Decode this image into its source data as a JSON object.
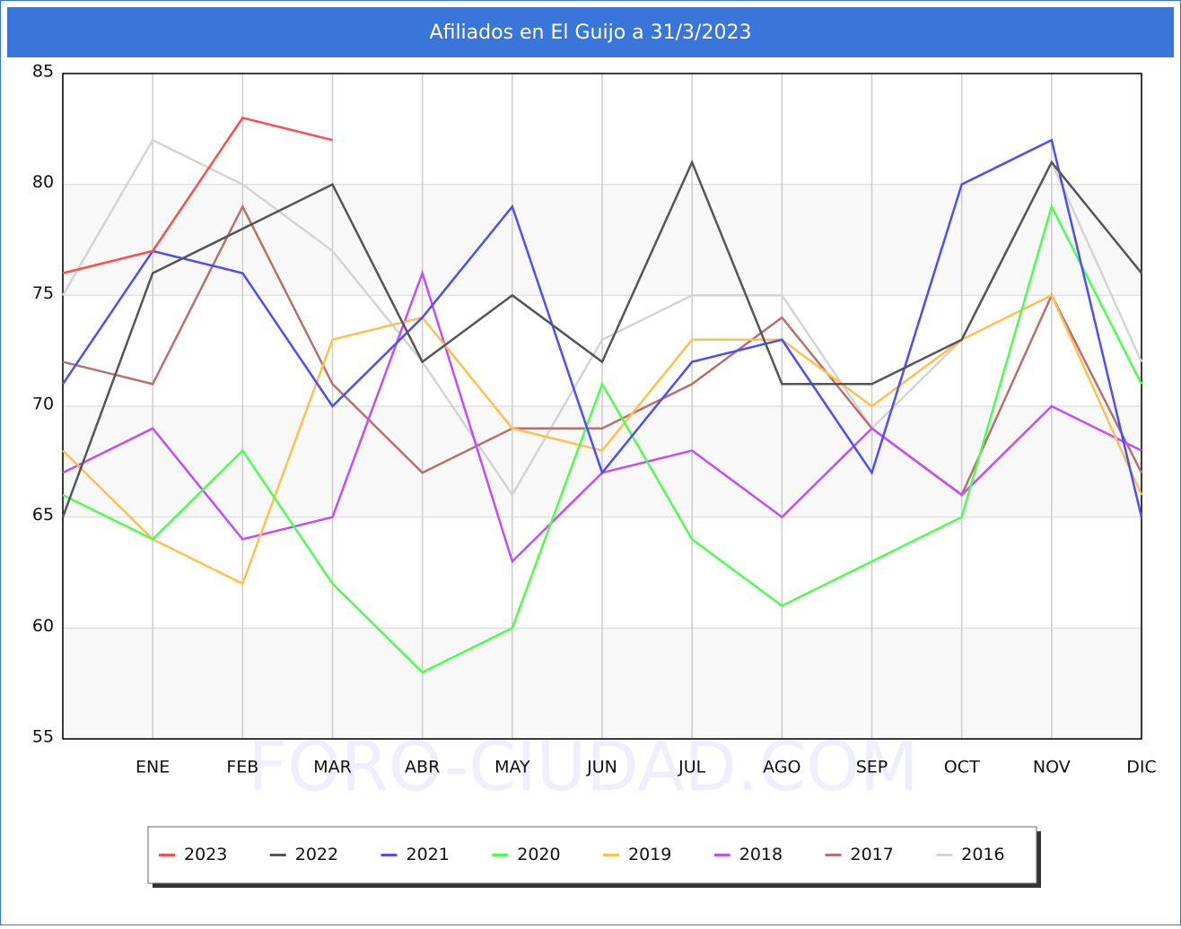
{
  "chart_data": {
    "type": "line",
    "title": "Afiliados en El Guijo a 31/3/2023",
    "watermark": "FORO-CIUDAD.COM",
    "categories": [
      null,
      "ENE",
      "FEB",
      "MAR",
      "ABR",
      "MAY",
      "JUN",
      "JUL",
      "AGO",
      "SEP",
      "OCT",
      "NOV",
      "DIC"
    ],
    "ylim": [
      55,
      85
    ],
    "yticks": [
      55,
      60,
      65,
      70,
      75,
      80,
      85
    ],
    "grid": true,
    "legend": "bottom",
    "series": [
      {
        "name": "2023",
        "color": "#ff4d4d",
        "values": [
          76,
          77,
          83,
          82,
          null,
          null,
          null,
          null,
          null,
          null,
          null,
          null,
          null
        ]
      },
      {
        "name": "2022",
        "color": "#555555",
        "values": [
          65,
          76,
          78,
          80,
          72,
          75,
          72,
          81,
          71,
          71,
          73,
          81,
          76
        ]
      },
      {
        "name": "2021",
        "color": "#4d4dff",
        "values": [
          71,
          77,
          76,
          70,
          74,
          79,
          67,
          72,
          73,
          67,
          80,
          82,
          65
        ]
      },
      {
        "name": "2020",
        "color": "#4dff4d",
        "values": [
          66,
          64,
          68,
          62,
          58,
          60,
          71,
          64,
          61,
          63,
          65,
          79,
          71
        ]
      },
      {
        "name": "2019",
        "color": "#ffc04d",
        "values": [
          68,
          64,
          62,
          73,
          74,
          69,
          68,
          73,
          73,
          70,
          73,
          75,
          66
        ]
      },
      {
        "name": "2018",
        "color": "#c04dff",
        "values": [
          67,
          69,
          64,
          65,
          76,
          63,
          67,
          68,
          65,
          69,
          66,
          70,
          68
        ]
      },
      {
        "name": "2017",
        "color": "#b87070",
        "values": [
          72,
          71,
          79,
          71,
          67,
          69,
          69,
          71,
          74,
          69,
          66,
          75,
          67
        ]
      },
      {
        "name": "2016",
        "color": "#d4d4d4",
        "values": [
          75,
          82,
          80,
          77,
          72,
          66,
          73,
          75,
          75,
          69,
          73,
          81,
          72
        ]
      }
    ]
  }
}
